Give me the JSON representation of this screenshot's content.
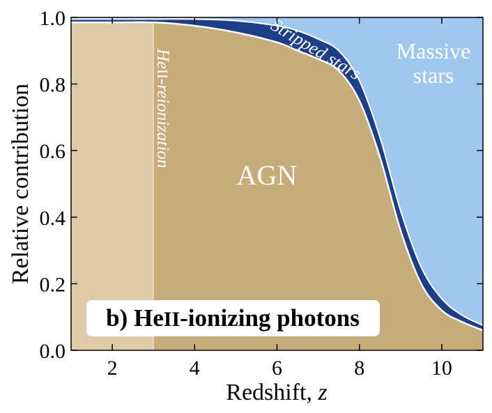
{
  "chart_data": {
    "type": "area",
    "title": "",
    "xlabel": "Redshift, z",
    "ylabel": "Relative contribution",
    "xlim": [
      1,
      11
    ],
    "ylim": [
      0.0,
      1.0
    ],
    "xticks": [
      2,
      4,
      6,
      8,
      10
    ],
    "xtick_labels": [
      "2",
      "4",
      "6",
      "8",
      "10"
    ],
    "yticks": [
      0.0,
      0.2,
      0.4,
      0.6,
      0.8,
      1.0
    ],
    "ytick_labels": [
      "0.0",
      "0.2",
      "0.4",
      "0.6",
      "0.8",
      "1.0"
    ],
    "x": [
      1.0,
      2.0,
      3.0,
      4.0,
      5.0,
      6.0,
      6.5,
      7.0,
      7.5,
      8.0,
      8.5,
      9.0,
      9.5,
      10.0,
      10.5,
      11.0
    ],
    "series": [
      {
        "name": "AGN",
        "color": "#c8ab7a",
        "cumulative_top": [
          0.985,
          0.985,
          0.985,
          0.975,
          0.955,
          0.925,
          0.9,
          0.875,
          0.84,
          0.75,
          0.58,
          0.36,
          0.2,
          0.12,
          0.085,
          0.06
        ]
      },
      {
        "name": "Stripped stars",
        "color": "#1c3f87",
        "cumulative_top": [
          0.995,
          0.995,
          0.995,
          0.995,
          0.99,
          0.975,
          0.96,
          0.935,
          0.9,
          0.81,
          0.64,
          0.42,
          0.25,
          0.155,
          0.105,
          0.075
        ]
      },
      {
        "name": "Massive stars",
        "color": "#a0c8ef",
        "cumulative_top": [
          1.0,
          1.0,
          1.0,
          1.0,
          1.0,
          1.0,
          1.0,
          1.0,
          1.0,
          1.0,
          1.0,
          1.0,
          1.0,
          1.0,
          1.0,
          1.0
        ]
      }
    ],
    "shaded_region": {
      "x_start": 1,
      "x_end": 3,
      "label": "HeII-reionization",
      "color": "#e0cba8"
    },
    "annotations": {
      "agn": "AGN",
      "stripped": "Stripped stars",
      "massive_line1": "Massive",
      "massive_line2": "stars",
      "reion_prefix": "He",
      "reion_roman": "II",
      "reion_suffix": "-reionization",
      "panel_prefix": "b) He",
      "panel_roman": "II",
      "panel_suffix": "-ionizing photons"
    },
    "axis_label_parts": {
      "x_text": "Redshift, ",
      "x_var": "z"
    },
    "boundary_line_color": "#ffffff",
    "grid": false,
    "legend": "none"
  }
}
